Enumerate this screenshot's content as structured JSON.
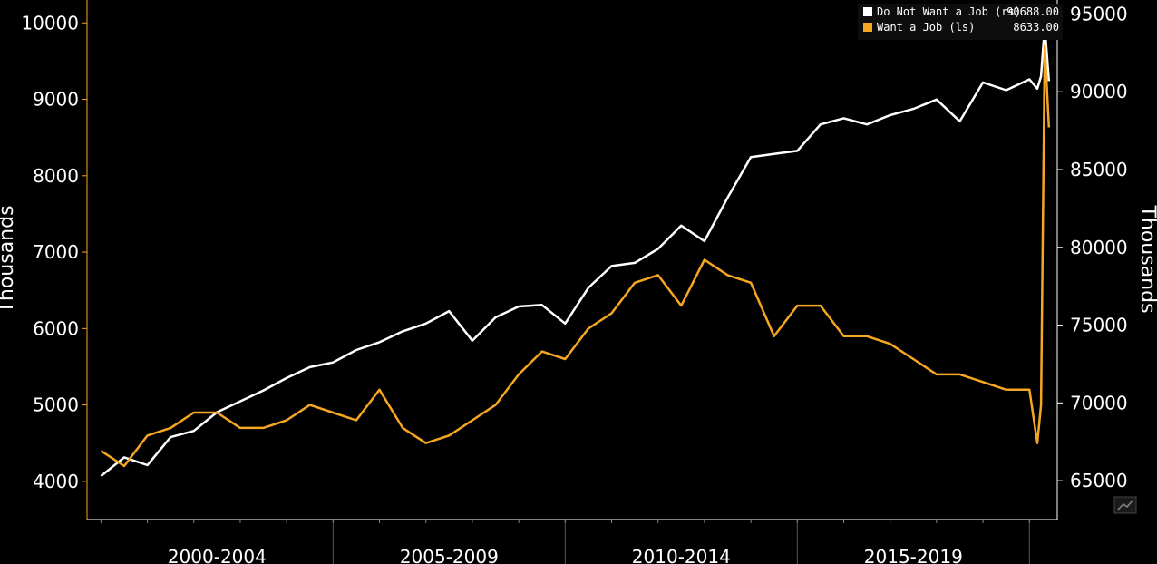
{
  "chart_data": {
    "type": "line",
    "left_axis": {
      "label": "Thousands",
      "ticks": [
        4000,
        5000,
        6000,
        7000,
        8000,
        9000,
        10000
      ],
      "range": [
        3500,
        10300
      ]
    },
    "right_axis": {
      "label": "Thousands",
      "ticks": [
        65000,
        70000,
        75000,
        80000,
        85000,
        90000,
        95000
      ],
      "range": [
        62500,
        95900
      ]
    },
    "x_range": [
      1999.7,
      2020.6
    ],
    "x_categories": [
      {
        "label": "2000-2004",
        "start": 2000,
        "end": 2005
      },
      {
        "label": "2005-2009",
        "start": 2005,
        "end": 2010
      },
      {
        "label": "2010-2014",
        "start": 2010,
        "end": 2015
      },
      {
        "label": "2015-2019",
        "start": 2015,
        "end": 2020
      }
    ],
    "x": [
      2000.0,
      2000.5,
      2001.0,
      2001.5,
      2002.0,
      2002.5,
      2003.0,
      2003.5,
      2004.0,
      2004.5,
      2005.0,
      2005.5,
      2006.0,
      2006.5,
      2007.0,
      2007.5,
      2008.0,
      2008.5,
      2009.0,
      2009.5,
      2010.0,
      2010.5,
      2011.0,
      2011.5,
      2012.0,
      2012.5,
      2013.0,
      2013.5,
      2014.0,
      2014.5,
      2015.0,
      2015.5,
      2016.0,
      2016.5,
      2017.0,
      2017.5,
      2018.0,
      2018.5,
      2019.0,
      2019.5,
      2020.0,
      2020.17,
      2020.25,
      2020.33,
      2020.42
    ],
    "series": [
      {
        "name": "Do Not Want a Job (rs)",
        "axis": "right",
        "color": "#ffffff",
        "last_value": "90688.00",
        "values": [
          65300,
          66500,
          66000,
          67800,
          68200,
          69400,
          70100,
          70800,
          71600,
          72300,
          72600,
          73400,
          73900,
          74600,
          75100,
          75900,
          74000,
          75500,
          76200,
          76300,
          75100,
          77400,
          78800,
          79000,
          79900,
          81400,
          80400,
          83200,
          85800,
          86000,
          86200,
          87900,
          88300,
          87900,
          88500,
          88900,
          89500,
          88100,
          90600,
          90100,
          90800,
          90200,
          91000,
          94200,
          90688
        ]
      },
      {
        "name": "Want a Job (ls)",
        "axis": "left",
        "color": "#f5a623",
        "last_value": "8633.00",
        "values": [
          4400,
          4200,
          4600,
          4700,
          4900,
          4900,
          4700,
          4700,
          4800,
          5000,
          4900,
          4800,
          5200,
          4700,
          4500,
          4600,
          4800,
          5000,
          5400,
          5700,
          5600,
          6000,
          6200,
          6600,
          6700,
          6300,
          6900,
          6700,
          6600,
          5900,
          6300,
          6300,
          5900,
          5900,
          5800,
          5600,
          5400,
          5400,
          5300,
          5200,
          5200,
          4500,
          5000,
          9700,
          8633
        ]
      }
    ]
  },
  "icons": {
    "corner": "chart-thumbnail-icon"
  }
}
